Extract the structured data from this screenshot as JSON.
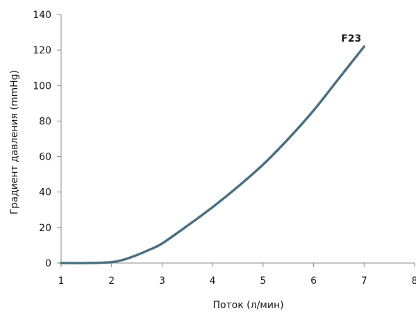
{
  "chart_data": {
    "type": "line",
    "title": "",
    "xlabel": "Поток (л/мин)",
    "ylabel": "Градиент давления (mmHg)",
    "xlim": [
      1,
      8
    ],
    "ylim": [
      0,
      140
    ],
    "x_ticks": [
      "1",
      "2",
      "3",
      "4",
      "5",
      "6",
      "7",
      "8"
    ],
    "y_ticks": [
      "0",
      "20",
      "40",
      "60",
      "80",
      "100",
      "120",
      "140"
    ],
    "grid": false,
    "legend": "none",
    "series": [
      {
        "name": "F23",
        "color": "#4a7080",
        "x": [
          1,
          1.5,
          2,
          2.25,
          2.5,
          2.75,
          3,
          3.5,
          4,
          4.5,
          5,
          5.5,
          6,
          6.5,
          7
        ],
        "y": [
          0,
          0,
          0.5,
          2,
          4.5,
          7.5,
          11,
          21,
          31.5,
          43,
          55.5,
          70,
          86,
          104,
          122
        ]
      }
    ]
  }
}
